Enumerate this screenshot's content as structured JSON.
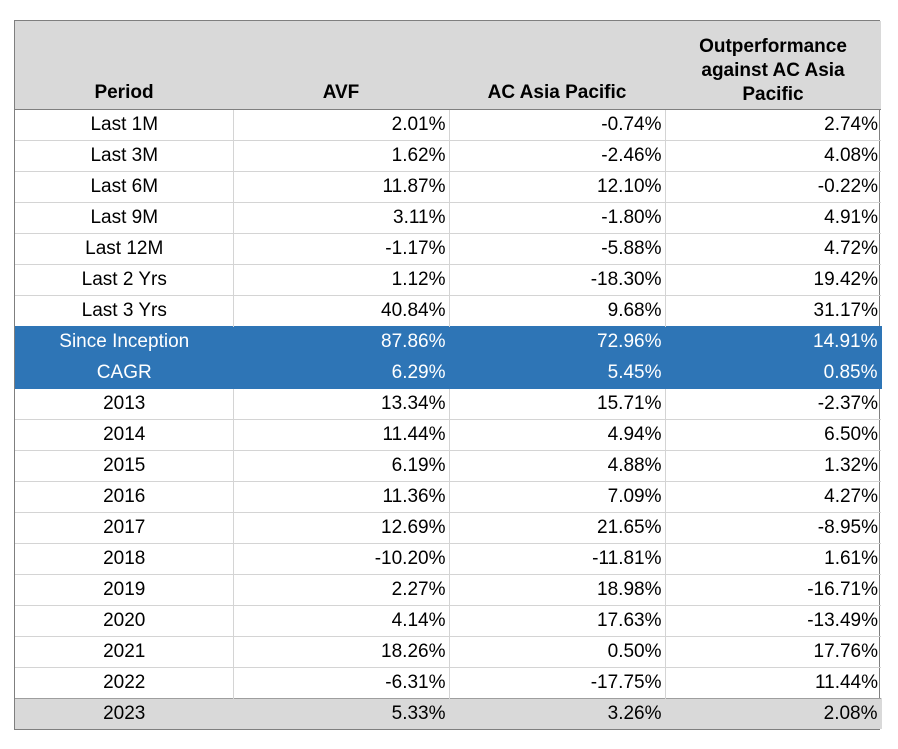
{
  "table": {
    "headers": {
      "period": "Period",
      "avf": "AVF",
      "ac": "AC Asia Pacific",
      "out": "Outperformance against AC Asia Pacific"
    },
    "rows": [
      {
        "period": "Last 1M",
        "avf": "2.01%",
        "ac": "-0.74%",
        "out": "2.74%"
      },
      {
        "period": "Last 3M",
        "avf": "1.62%",
        "ac": "-2.46%",
        "out": "4.08%"
      },
      {
        "period": "Last 6M",
        "avf": "11.87%",
        "ac": "12.10%",
        "out": "-0.22%"
      },
      {
        "period": "Last 9M",
        "avf": "3.11%",
        "ac": "-1.80%",
        "out": "4.91%"
      },
      {
        "period": "Last 12M",
        "avf": "-1.17%",
        "ac": "-5.88%",
        "out": "4.72%"
      },
      {
        "period": "Last 2 Yrs",
        "avf": "1.12%",
        "ac": "-18.30%",
        "out": "19.42%"
      },
      {
        "period": "Last 3 Yrs",
        "avf": "40.84%",
        "ac": "9.68%",
        "out": "31.17%"
      },
      {
        "period": "Since Inception",
        "avf": "87.86%",
        "ac": "72.96%",
        "out": "14.91%"
      },
      {
        "period": "CAGR",
        "avf": "6.29%",
        "ac": "5.45%",
        "out": "0.85%"
      },
      {
        "period": "2013",
        "avf": "13.34%",
        "ac": "15.71%",
        "out": "-2.37%"
      },
      {
        "period": "2014",
        "avf": "11.44%",
        "ac": "4.94%",
        "out": "6.50%"
      },
      {
        "period": "2015",
        "avf": "6.19%",
        "ac": "4.88%",
        "out": "1.32%"
      },
      {
        "period": "2016",
        "avf": "11.36%",
        "ac": "7.09%",
        "out": "4.27%"
      },
      {
        "period": "2017",
        "avf": "12.69%",
        "ac": "21.65%",
        "out": "-8.95%"
      },
      {
        "period": "2018",
        "avf": "-10.20%",
        "ac": "-11.81%",
        "out": "1.61%"
      },
      {
        "period": "2019",
        "avf": "2.27%",
        "ac": "18.98%",
        "out": "-16.71%"
      },
      {
        "period": "2020",
        "avf": "4.14%",
        "ac": "17.63%",
        "out": "-13.49%"
      },
      {
        "period": "2021",
        "avf": "18.26%",
        "ac": "0.50%",
        "out": "17.76%"
      },
      {
        "period": "2022",
        "avf": "-6.31%",
        "ac": "-17.75%",
        "out": "11.44%"
      },
      {
        "period": "2023",
        "avf": "5.33%",
        "ac": "3.26%",
        "out": "2.08%"
      }
    ]
  },
  "colors": {
    "header_bg": "#d9d9d9",
    "highlight_bg": "#2e75b6",
    "highlight_text": "#ffffff",
    "last_row_bg": "#d9d9d9"
  }
}
